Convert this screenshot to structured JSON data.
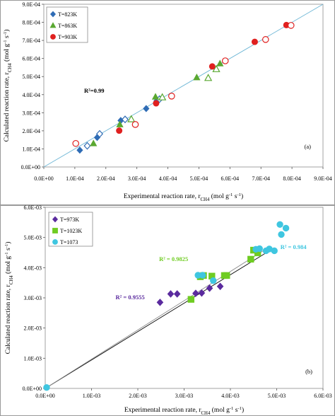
{
  "chart_data": [
    {
      "type": "scatter",
      "panel_label": "(a)",
      "xlabel": "Experimental reaction rate, r",
      "xlabel_sub": "CH4",
      "xlabel_units": " (mol g",
      "ylabel": "Calculated reaction rate, r",
      "ylabel_sub": "CH4",
      "ylabel_units": " (mol g",
      "xlim": [
        0,
        0.0009
      ],
      "ylim": [
        0,
        0.0009
      ],
      "xticks": [
        "0.0E+00",
        "1.0E-04",
        "2.0E-04",
        "3.0E-04",
        "4.0E-04",
        "5.0E-04",
        "6.0E-04",
        "7.0E-04",
        "8.0E-04",
        "9.0E-04"
      ],
      "yticks": [
        "0.0E+00",
        "1.0E-04",
        "2.0E-04",
        "3.0E-04",
        "4.0E-04",
        "5.0E-04",
        "6.0E-04",
        "7.0E-04",
        "8.0E-04",
        "9.0E-04"
      ],
      "grid": false,
      "legend_position": "top-left",
      "annotations": [
        {
          "text": "R²=0.99",
          "x": 0.00013,
          "y": 0.00041,
          "color": "#000000"
        }
      ],
      "fit_lines": [
        {
          "from": [
            0,
            0
          ],
          "to": [
            0.0009,
            0.0009
          ],
          "color": "#6fb7d6"
        }
      ],
      "series": [
        {
          "name": "T=823K",
          "marker": "diamond",
          "color": "#2f6cb5",
          "filled": [
            [
              0.000116,
              9.3e-05
            ],
            [
              0.000172,
              0.000163
            ],
            [
              0.000248,
              0.000257
            ],
            [
              0.00033,
              0.000323
            ],
            [
              0.000364,
              0.000366
            ]
          ],
          "open": [
            [
              0.00014,
              0.000117
            ],
            [
              0.00018,
              0.000183
            ],
            [
              0.000262,
              0.000263
            ],
            [
              0.000373,
              0.000375
            ]
          ]
        },
        {
          "name": "T=863K",
          "marker": "triangle",
          "color": "#5aa831",
          "filled": [
            [
              0.00016,
              0.00013
            ],
            [
              0.000245,
              0.000235
            ],
            [
              0.00036,
              0.000388
            ],
            [
              0.000493,
              0.000495
            ],
            [
              0.000568,
              0.000572
            ]
          ],
          "open": [
            [
              0.000282,
              0.000264
            ],
            [
              0.000382,
              0.000385
            ],
            [
              0.00053,
              0.000492
            ],
            [
              0.000556,
              0.000541
            ]
          ]
        },
        {
          "name": "T=903K",
          "marker": "circle",
          "color": "#e0201f",
          "filled": [
            [
              0.000243,
              0.000201
            ],
            [
              0.000362,
              0.000352
            ],
            [
              0.000543,
              0.000556
            ],
            [
              0.00068,
              0.000692
            ],
            [
              0.000782,
              0.000785
            ]
          ],
          "open": [
            [
              0.000103,
              0.00013
            ],
            [
              0.000295,
              0.000235
            ],
            [
              0.000412,
              0.000392
            ],
            [
              0.000585,
              0.000587
            ],
            [
              0.000715,
              0.000705
            ],
            [
              0.000797,
              0.000783
            ]
          ]
        }
      ]
    },
    {
      "type": "scatter",
      "panel_label": "(b)",
      "xlabel": "Experimental reaction rate, r",
      "xlabel_sub": "CH4",
      "xlabel_units": " (mol g",
      "ylabel": "Calculated reaction rate, r",
      "ylabel_sub": "CH4",
      "ylabel_units": " (mol g",
      "xlim": [
        0,
        0.006
      ],
      "ylim": [
        0,
        0.006
      ],
      "xticks": [
        "0.0E+00",
        "1.0E-03",
        "2.0E-03",
        "3.0E-03",
        "4.0E-03",
        "5.0E-03",
        "6.0E-03"
      ],
      "yticks": [
        "0.0E+00",
        "1.0E-03",
        "2.0E-03",
        "3.0E-03",
        "4.0E-03",
        "5.0E-03",
        "6.0E-03"
      ],
      "grid": false,
      "legend_position": "top-left",
      "annotations": [
        {
          "text": "R² = 0.9555",
          "x": 0.00152,
          "y": 0.00295,
          "color": "#5a2a9e"
        },
        {
          "text": "R² = 0.9825",
          "x": 0.00246,
          "y": 0.00422,
          "color": "#6fcc22"
        },
        {
          "text": "R² = 0.984",
          "x": 0.00508,
          "y": 0.00462,
          "color": "#3fc6e0"
        }
      ],
      "fit_lines": [
        {
          "from": [
            0,
            0
          ],
          "to": [
            0.00495,
            0.00466
          ],
          "color": "#000000"
        },
        {
          "from": [
            0,
            0
          ],
          "to": [
            0.00475,
            0.0046
          ],
          "color": "#888888"
        }
      ],
      "series": [
        {
          "name": "T=973K",
          "marker": "diamond",
          "color": "#5a2a9e",
          "filled_only": true,
          "filled": [
            [
              0.00248,
              0.00285
            ],
            [
              0.00271,
              0.00313
            ],
            [
              0.00285,
              0.00313
            ],
            [
              0.00325,
              0.00315
            ],
            [
              0.00338,
              0.00316
            ],
            [
              0.00355,
              0.00332
            ],
            [
              0.00378,
              0.00338
            ]
          ]
        },
        {
          "name": "T=1023K",
          "marker": "square",
          "color": "#6fcc22",
          "filled_only": true,
          "filled": [
            [
              0.00315,
              0.00295
            ],
            [
              0.00335,
              0.0037
            ],
            [
              0.00342,
              0.00374
            ],
            [
              0.0036,
              0.00372
            ],
            [
              0.00387,
              0.00374
            ],
            [
              0.00392,
              0.00374
            ],
            [
              0.00444,
              0.00428
            ],
            [
              0.0045,
              0.00458
            ],
            [
              0.00459,
              0.00449
            ]
          ]
        },
        {
          "name": "T=1073",
          "marker": "circle",
          "color": "#3fc6e0",
          "filled_only": true,
          "filled": [
            [
              3e-05,
              3e-05
            ],
            [
              0.0033,
              0.00375
            ],
            [
              0.0034,
              0.00375
            ],
            [
              0.00363,
              0.00357
            ],
            [
              0.00455,
              0.00461
            ],
            [
              0.00463,
              0.00463
            ],
            [
              0.00477,
              0.00456
            ],
            [
              0.00484,
              0.00462
            ],
            [
              0.00495,
              0.00456
            ],
            [
              0.00507,
              0.00543
            ],
            [
              0.0051,
              0.0051
            ],
            [
              0.0052,
              0.00531
            ]
          ]
        }
      ]
    }
  ]
}
